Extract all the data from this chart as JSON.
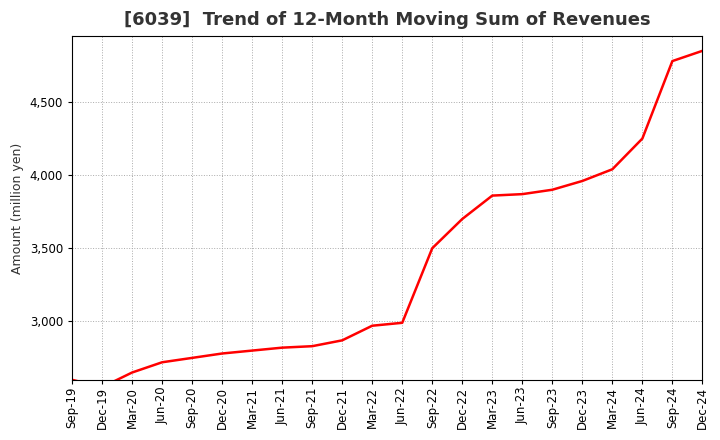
{
  "title": "[6039]  Trend of 12-Month Moving Sum of Revenues",
  "ylabel": "Amount (million yen)",
  "line_color": "#FF0000",
  "background_color": "#FFFFFF",
  "grid_color": "#AAAAAA",
  "title_color": "#333333",
  "x_labels": [
    "Sep-19",
    "Dec-19",
    "Mar-20",
    "Jun-20",
    "Sep-20",
    "Dec-20",
    "Mar-21",
    "Jun-21",
    "Sep-21",
    "Dec-21",
    "Mar-22",
    "Jun-22",
    "Sep-22",
    "Dec-22",
    "Mar-23",
    "Jun-23",
    "Sep-23",
    "Dec-23",
    "Mar-24",
    "Jun-24",
    "Sep-24",
    "Dec-24"
  ],
  "values": [
    2600,
    2550,
    2650,
    2720,
    2750,
    2780,
    2800,
    2820,
    2830,
    2870,
    2970,
    2990,
    3500,
    3700,
    3860,
    3870,
    3900,
    3960,
    4040,
    4250,
    4780,
    4850
  ],
  "ylim": [
    2600,
    4950
  ],
  "yticks": [
    3000,
    3500,
    4000,
    4500
  ],
  "title_fontsize": 13,
  "axis_fontsize": 9,
  "tick_fontsize": 8.5,
  "linewidth": 1.8
}
